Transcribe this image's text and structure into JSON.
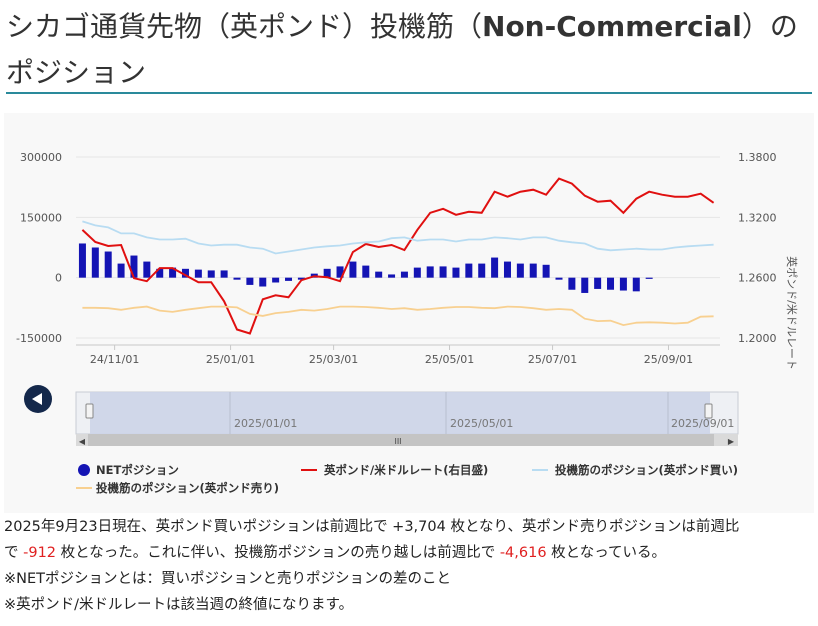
{
  "title": {
    "part1": "シカゴ通貨先物（英ポンド）投機筋（",
    "bold": "Non-Commercial",
    "part2": "）のポジション"
  },
  "chart_data": {
    "type": "bar+line",
    "y_left": {
      "min": -150000,
      "max": 300000,
      "ticks": [
        300000,
        150000,
        0,
        -150000
      ],
      "tick_labels": [
        "300000",
        "150000",
        "0",
        "-150000"
      ]
    },
    "y_right": {
      "min": 1.2,
      "max": 1.38,
      "ticks": [
        1.38,
        1.32,
        1.26,
        1.2
      ],
      "tick_labels": [
        "1.3800",
        "1.3200",
        "1.2600",
        "1.2000"
      ],
      "label": "英ポンド/米ドルレート"
    },
    "x_ticks": [
      "24/11/01",
      "25/01/01",
      "25/03/01",
      "25/05/01",
      "25/07/01",
      "25/09/01"
    ],
    "x": [
      "2024-10-15",
      "2024-10-22",
      "2024-10-29",
      "2024-11-05",
      "2024-11-12",
      "2024-11-19",
      "2024-11-26",
      "2024-12-03",
      "2024-12-10",
      "2024-12-17",
      "2024-12-24",
      "2024-12-31",
      "2025-01-07",
      "2025-01-14",
      "2025-01-21",
      "2025-01-28",
      "2025-02-04",
      "2025-02-11",
      "2025-02-18",
      "2025-02-25",
      "2025-03-04",
      "2025-03-11",
      "2025-03-18",
      "2025-03-25",
      "2025-04-01",
      "2025-04-08",
      "2025-04-15",
      "2025-04-22",
      "2025-04-29",
      "2025-05-06",
      "2025-05-13",
      "2025-05-20",
      "2025-05-27",
      "2025-06-03",
      "2025-06-10",
      "2025-06-17",
      "2025-06-24",
      "2025-07-01",
      "2025-07-08",
      "2025-07-15",
      "2025-07-22",
      "2025-07-29",
      "2025-08-05",
      "2025-08-12",
      "2025-08-19",
      "2025-08-26",
      "2025-09-02",
      "2025-09-09",
      "2025-09-16",
      "2025-09-23"
    ],
    "series": [
      {
        "name": "NETポジション",
        "kind": "bar",
        "color": "#1414b4",
        "values": [
          85000,
          75000,
          65000,
          35000,
          55000,
          40000,
          22000,
          25000,
          22000,
          20000,
          18000,
          18000,
          -5000,
          -18000,
          -22000,
          -12000,
          -8000,
          -5000,
          10000,
          22000,
          28000,
          40000,
          30000,
          15000,
          8000,
          15000,
          25000,
          28000,
          28000,
          25000,
          35000,
          35000,
          50000,
          40000,
          35000,
          35000,
          32000,
          -5000,
          -30000,
          -38000,
          -28000,
          -30000,
          -32000,
          -34000,
          -3000,
          null,
          null,
          null,
          null,
          null
        ]
      },
      {
        "name": "英ポンド/米ドルレート(右目盛)",
        "kind": "line",
        "axis": "right",
        "color": "#e01010",
        "values": [
          1.3075,
          1.2955,
          1.2915,
          1.2925,
          1.2595,
          1.2565,
          1.2695,
          1.2695,
          1.2625,
          1.2555,
          1.2555,
          1.2365,
          1.2085,
          1.2045,
          1.2385,
          1.2425,
          1.2405,
          1.2575,
          1.2615,
          1.2605,
          1.2565,
          1.2855,
          1.2935,
          1.2905,
          1.2925,
          1.2875,
          1.3075,
          1.3245,
          1.3285,
          1.3225,
          1.3255,
          1.3245,
          1.3455,
          1.3405,
          1.3455,
          1.3475,
          1.3425,
          1.3585,
          1.3535,
          1.3415,
          1.3355,
          1.3365,
          1.3245,
          1.3385,
          1.3455,
          1.3425,
          1.3405,
          1.3405,
          1.3435,
          1.3345
        ]
      },
      {
        "name": "投機筋のポジション(英ポンド買い)",
        "kind": "line",
        "color": "#b8dcf2",
        "values": [
          140000,
          130000,
          125000,
          110000,
          110000,
          100000,
          95000,
          95000,
          97000,
          85000,
          80000,
          82000,
          82000,
          75000,
          72000,
          60000,
          65000,
          70000,
          75000,
          78000,
          80000,
          85000,
          88000,
          90000,
          98000,
          100000,
          92000,
          95000,
          95000,
          90000,
          95000,
          95000,
          100000,
          98000,
          95000,
          100000,
          100000,
          92000,
          88000,
          85000,
          72000,
          68000,
          70000,
          72000,
          70000,
          70000,
          75000,
          78000,
          80000,
          82000
        ]
      },
      {
        "name": "投機筋のポジション(英ポンド売り)",
        "kind": "line",
        "color": "#f8d090",
        "values": [
          -75000,
          -75000,
          -76000,
          -80000,
          -75000,
          -72000,
          -82000,
          -85000,
          -80000,
          -76000,
          -72000,
          -72000,
          -74000,
          -90000,
          -95000,
          -88000,
          -85000,
          -80000,
          -82000,
          -78000,
          -72000,
          -72000,
          -73000,
          -75000,
          -78000,
          -76000,
          -80000,
          -78000,
          -75000,
          -73000,
          -73000,
          -75000,
          -76000,
          -72000,
          -73000,
          -76000,
          -80000,
          -78000,
          -80000,
          -102000,
          -108000,
          -107000,
          -118000,
          -112000,
          -111000,
          -112000,
          -114000,
          -112000,
          -97000,
          -96000
        ]
      }
    ]
  },
  "navigator": {
    "label_left": "2025/01/01",
    "label_mid": "2025/05/01",
    "label_right": "2025/09/01",
    "scroll_handle": "III"
  },
  "icons": {
    "back_button": "left-arrow-icon"
  },
  "legend": [
    {
      "label": "NETポジション",
      "marker": "circle",
      "color": "#1414b4"
    },
    {
      "label": "英ポンド/米ドルレート(右目盛)",
      "marker": "line",
      "color": "#e01010"
    },
    {
      "label": "投機筋のポジション(英ポンド買い)",
      "marker": "line",
      "color": "#b8dcf2"
    },
    {
      "label": "投機筋のポジション(英ポンド売り)",
      "marker": "line",
      "color": "#f8d090"
    }
  ],
  "description": {
    "line1": "2025年9月23日現在、英ポンド買いポジションは前週比で +3,704 枚となり、英ポンド売りポジションは前週比",
    "line2_a": "で ",
    "line2_neg1": "-912",
    "line2_b": " 枚となった。これに伴い、投機筋ポジションの売り越しは前週比で ",
    "line2_neg2": "-4,616",
    "line2_c": " 枚となっている。",
    "note1": "※NETポジションとは：買いポジションと売りポジションの差のこと",
    "note2": "※英ポンド/米ドルレートは該当週の終値になります。"
  }
}
